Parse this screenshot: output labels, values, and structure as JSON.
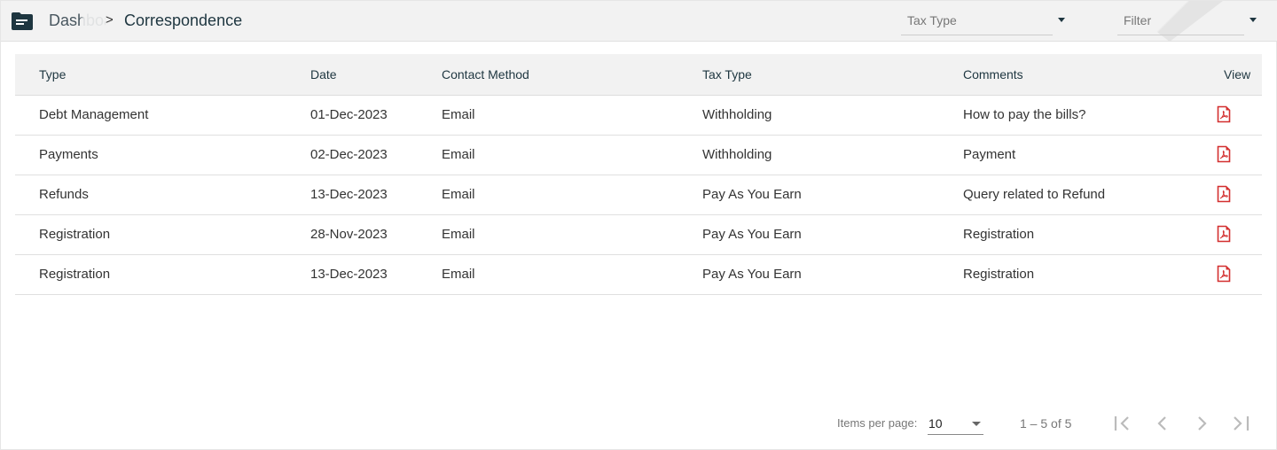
{
  "header": {
    "breadcrumb": [
      "Dashboard",
      "Correspondence"
    ],
    "separator": ">",
    "tax_type_placeholder": "Tax Type",
    "filter_placeholder": "Filter"
  },
  "table": {
    "columns": [
      "Type",
      "Date",
      "Contact Method",
      "Tax Type",
      "Comments",
      "View"
    ],
    "rows": [
      [
        "Debt Management",
        "01-Dec-2023",
        "Email",
        "Withholding",
        "How to pay the bills?"
      ],
      [
        "Payments",
        "02-Dec-2023",
        "Email",
        "Withholding",
        "Payment"
      ],
      [
        "Refunds",
        "13-Dec-2023",
        "Email",
        "Pay As You Earn",
        "Query related to Refund"
      ],
      [
        "Registration",
        "28-Nov-2023",
        "Email",
        "Pay As You Earn",
        "Registration"
      ],
      [
        "Registration",
        "13-Dec-2023",
        "Email",
        "Pay As You Earn",
        "Registration"
      ]
    ]
  },
  "pagination": {
    "items_label": "Items per page:",
    "page_size": "10",
    "range": "1 – 5 of 5"
  },
  "colors": {
    "primary": "#1e3640",
    "pdf": "#d32f2f"
  }
}
